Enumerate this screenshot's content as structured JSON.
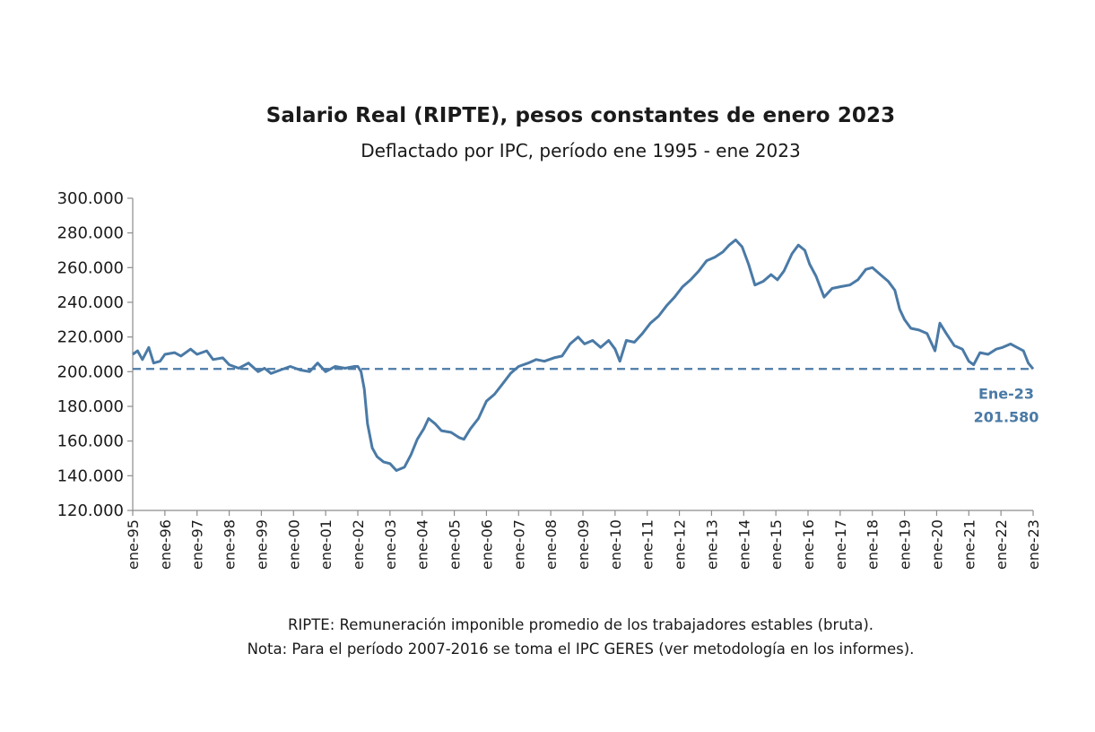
{
  "chart_data": {
    "type": "line",
    "title": "Salario Real (RIPTE), pesos constantes de enero 2023",
    "subtitle": "Deflactado por IPC, período ene 1995 - ene 2023",
    "ylim": [
      120000,
      300000
    ],
    "y_ticks": [
      "120.000",
      "140.000",
      "160.000",
      "180.000",
      "200.000",
      "220.000",
      "240.000",
      "260.000",
      "280.000",
      "300.000"
    ],
    "y_tick_values": [
      120000,
      140000,
      160000,
      180000,
      200000,
      220000,
      240000,
      260000,
      280000,
      300000
    ],
    "x_ticks": [
      "ene-95",
      "ene-96",
      "ene-97",
      "ene-98",
      "ene-99",
      "ene-00",
      "ene-01",
      "ene-02",
      "ene-03",
      "ene-04",
      "ene-05",
      "ene-06",
      "ene-07",
      "ene-08",
      "ene-09",
      "ene-10",
      "ene-11",
      "ene-12",
      "ene-13",
      "ene-14",
      "ene-15",
      "ene-16",
      "ene-17",
      "ene-18",
      "ene-19",
      "ene-20",
      "ene-21",
      "ene-22",
      "ene-23"
    ],
    "series": [
      {
        "name": "Salario Real (RIPTE)",
        "color": "#4a7aa6",
        "points": [
          [
            1995.0,
            210000
          ],
          [
            1995.15,
            212000
          ],
          [
            1995.3,
            207000
          ],
          [
            1995.5,
            214000
          ],
          [
            1995.65,
            205000
          ],
          [
            1995.85,
            206000
          ],
          [
            1996.0,
            210000
          ],
          [
            1996.3,
            211000
          ],
          [
            1996.5,
            209000
          ],
          [
            1996.8,
            213000
          ],
          [
            1997.0,
            210000
          ],
          [
            1997.3,
            212000
          ],
          [
            1997.5,
            207000
          ],
          [
            1997.8,
            208000
          ],
          [
            1998.0,
            204000
          ],
          [
            1998.3,
            202000
          ],
          [
            1998.6,
            205000
          ],
          [
            1998.9,
            200000
          ],
          [
            1999.1,
            202000
          ],
          [
            1999.3,
            199000
          ],
          [
            1999.6,
            201000
          ],
          [
            1999.9,
            203000
          ],
          [
            2000.2,
            201000
          ],
          [
            2000.5,
            200000
          ],
          [
            2000.75,
            205000
          ],
          [
            2001.0,
            200000
          ],
          [
            2001.3,
            203000
          ],
          [
            2001.6,
            202000
          ],
          [
            2001.9,
            203000
          ],
          [
            2002.0,
            203000
          ],
          [
            2002.1,
            200000
          ],
          [
            2002.2,
            190000
          ],
          [
            2002.3,
            170000
          ],
          [
            2002.45,
            156000
          ],
          [
            2002.6,
            151000
          ],
          [
            2002.8,
            148000
          ],
          [
            2003.0,
            147000
          ],
          [
            2003.2,
            143000
          ],
          [
            2003.45,
            145000
          ],
          [
            2003.65,
            152000
          ],
          [
            2003.85,
            161000
          ],
          [
            2004.05,
            167000
          ],
          [
            2004.2,
            173000
          ],
          [
            2004.4,
            170000
          ],
          [
            2004.6,
            166000
          ],
          [
            2004.9,
            165000
          ],
          [
            2005.15,
            162000
          ],
          [
            2005.3,
            161000
          ],
          [
            2005.5,
            167000
          ],
          [
            2005.75,
            173000
          ],
          [
            2006.0,
            183000
          ],
          [
            2006.25,
            187000
          ],
          [
            2006.5,
            193000
          ],
          [
            2006.75,
            199000
          ],
          [
            2007.0,
            203000
          ],
          [
            2007.3,
            205000
          ],
          [
            2007.55,
            207000
          ],
          [
            2007.8,
            206000
          ],
          [
            2008.1,
            208000
          ],
          [
            2008.35,
            209000
          ],
          [
            2008.6,
            216000
          ],
          [
            2008.85,
            220000
          ],
          [
            2009.05,
            216000
          ],
          [
            2009.3,
            218000
          ],
          [
            2009.55,
            214000
          ],
          [
            2009.8,
            218000
          ],
          [
            2010.0,
            213000
          ],
          [
            2010.15,
            206000
          ],
          [
            2010.35,
            218000
          ],
          [
            2010.6,
            217000
          ],
          [
            2010.85,
            222000
          ],
          [
            2011.1,
            228000
          ],
          [
            2011.35,
            232000
          ],
          [
            2011.6,
            238000
          ],
          [
            2011.85,
            243000
          ],
          [
            2012.1,
            249000
          ],
          [
            2012.35,
            253000
          ],
          [
            2012.6,
            258000
          ],
          [
            2012.85,
            264000
          ],
          [
            2013.1,
            266000
          ],
          [
            2013.35,
            269000
          ],
          [
            2013.55,
            273000
          ],
          [
            2013.75,
            276000
          ],
          [
            2013.95,
            272000
          ],
          [
            2014.15,
            262000
          ],
          [
            2014.35,
            250000
          ],
          [
            2014.6,
            252000
          ],
          [
            2014.85,
            256000
          ],
          [
            2015.05,
            253000
          ],
          [
            2015.25,
            258000
          ],
          [
            2015.5,
            268000
          ],
          [
            2015.7,
            273000
          ],
          [
            2015.9,
            270000
          ],
          [
            2016.05,
            262000
          ],
          [
            2016.25,
            255000
          ],
          [
            2016.5,
            243000
          ],
          [
            2016.75,
            248000
          ],
          [
            2017.0,
            249000
          ],
          [
            2017.3,
            250000
          ],
          [
            2017.55,
            253000
          ],
          [
            2017.8,
            259000
          ],
          [
            2018.0,
            260000
          ],
          [
            2018.25,
            256000
          ],
          [
            2018.5,
            252000
          ],
          [
            2018.7,
            247000
          ],
          [
            2018.85,
            236000
          ],
          [
            2019.0,
            230000
          ],
          [
            2019.2,
            225000
          ],
          [
            2019.45,
            224000
          ],
          [
            2019.7,
            222000
          ],
          [
            2019.95,
            212000
          ],
          [
            2020.1,
            228000
          ],
          [
            2020.3,
            222000
          ],
          [
            2020.55,
            215000
          ],
          [
            2020.8,
            213000
          ],
          [
            2021.0,
            206000
          ],
          [
            2021.15,
            204000
          ],
          [
            2021.35,
            211000
          ],
          [
            2021.6,
            210000
          ],
          [
            2021.85,
            213000
          ],
          [
            2022.05,
            214000
          ],
          [
            2022.3,
            216000
          ],
          [
            2022.5,
            214000
          ],
          [
            2022.7,
            212000
          ],
          [
            2022.85,
            205000
          ],
          [
            2023.0,
            201580
          ]
        ]
      }
    ],
    "reference_line": {
      "value": 201580,
      "style": "dashed",
      "color": "#4a7aa6"
    },
    "annotation": {
      "label": "Ene-23",
      "value_label": "201.580",
      "x": 2023.0,
      "y": 201580
    },
    "footnotes": [
      "RIPTE: Remuneración imponible promedio de los trabajadores estables (bruta).",
      "Nota: Para el período 2007-2016 se toma el IPC GERES (ver metodología en los informes)."
    ],
    "grid": false,
    "legend": "none"
  }
}
